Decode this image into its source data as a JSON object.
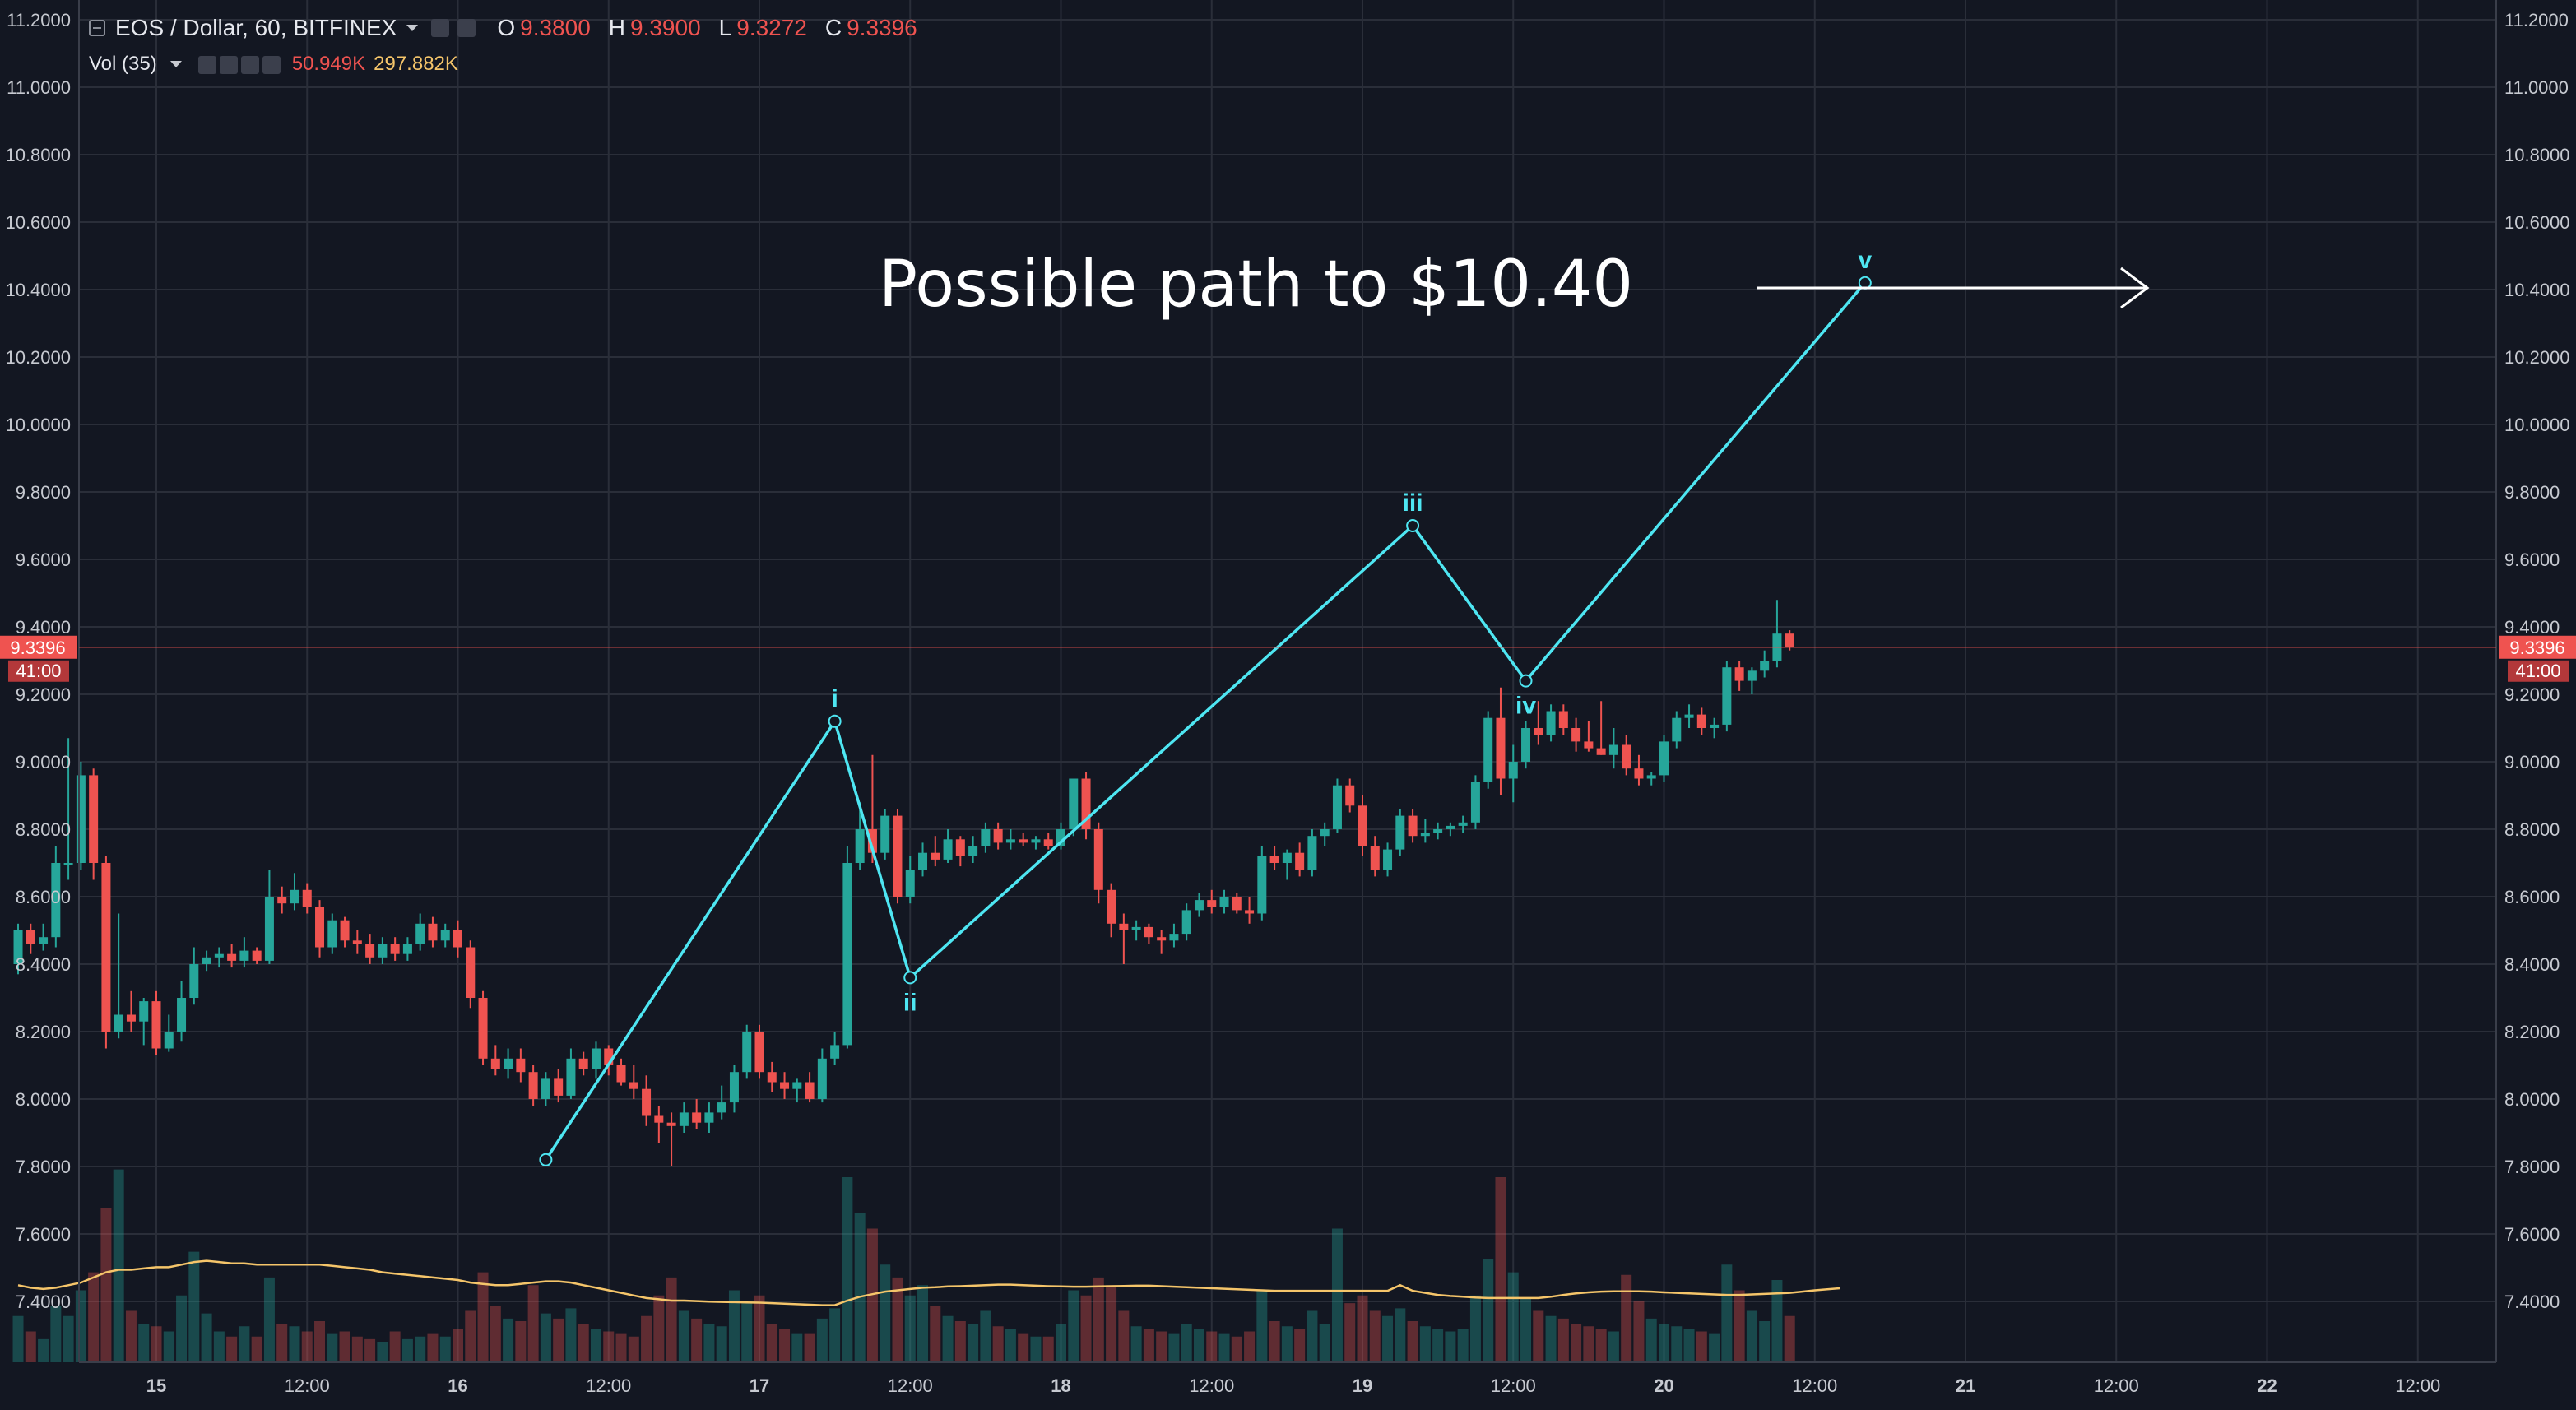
{
  "legend": {
    "symbol": "EOS / Dollar, 60, BITFINEX",
    "open_label": "O",
    "open": "9.3800",
    "high_label": "H",
    "high": "9.3900",
    "low_label": "L",
    "low": "9.3272",
    "close_label": "C",
    "close": "9.3396"
  },
  "volume_legend": {
    "label": "Vol (35)",
    "value": "50.949K",
    "ma": "297.882K"
  },
  "price_tag": {
    "price": "9.3396",
    "countdown": "41:00"
  },
  "annotation": {
    "text": "Possible path to $10.40"
  },
  "colors": {
    "background": "#131722",
    "grid": "#2a2e39",
    "up": "#26a69a",
    "down": "#ef5350",
    "wave": "#4ee6f2",
    "volume_ma": "#f5c56a",
    "price_line": "#ef5350"
  },
  "chart_data": {
    "type": "candlestick",
    "x_tick_labels": [
      "15",
      "12:00",
      "16",
      "12:00",
      "17",
      "12:00",
      "18",
      "12:00",
      "19",
      "12:00",
      "20",
      "12:00",
      "21",
      "12:00",
      "22",
      "12:00"
    ],
    "y_tick_labels": [
      "11.2000",
      "11.0000",
      "10.8000",
      "10.6000",
      "10.4000",
      "10.2000",
      "10.0000",
      "9.8000",
      "9.6000",
      "9.4000",
      "9.2000",
      "9.0000",
      "8.8000",
      "8.6000",
      "8.4000",
      "8.2000",
      "8.0000",
      "7.8000",
      "7.6000",
      "7.4000"
    ],
    "ylim": [
      7.2,
      11.25
    ],
    "bar_hours_per_day": 24,
    "x_range_hours": [
      -11,
      173
    ],
    "volume_max": 800,
    "candles": [
      {
        "o": 8.4,
        "h": 8.52,
        "l": 8.37,
        "c": 8.5,
        "v": 180
      },
      {
        "o": 8.5,
        "h": 8.52,
        "l": 8.43,
        "c": 8.46,
        "v": 120
      },
      {
        "o": 8.46,
        "h": 8.52,
        "l": 8.44,
        "c": 8.48,
        "v": 90
      },
      {
        "o": 8.48,
        "h": 8.75,
        "l": 8.45,
        "c": 8.7,
        "v": 220
      },
      {
        "o": 8.7,
        "h": 9.07,
        "l": 8.65,
        "c": 8.7,
        "v": 180
      },
      {
        "o": 8.7,
        "h": 9.0,
        "l": 8.68,
        "c": 8.96,
        "v": 280
      },
      {
        "o": 8.96,
        "h": 8.98,
        "l": 8.65,
        "c": 8.7,
        "v": 350
      },
      {
        "o": 8.7,
        "h": 8.72,
        "l": 8.15,
        "c": 8.2,
        "v": 600
      },
      {
        "o": 8.2,
        "h": 8.55,
        "l": 8.18,
        "c": 8.25,
        "v": 750
      },
      {
        "o": 8.25,
        "h": 8.32,
        "l": 8.2,
        "c": 8.23,
        "v": 200
      },
      {
        "o": 8.23,
        "h": 8.3,
        "l": 8.16,
        "c": 8.29,
        "v": 150
      },
      {
        "o": 8.29,
        "h": 8.32,
        "l": 8.13,
        "c": 8.15,
        "v": 140
      },
      {
        "o": 8.15,
        "h": 8.25,
        "l": 8.14,
        "c": 8.2,
        "v": 120
      },
      {
        "o": 8.2,
        "h": 8.35,
        "l": 8.17,
        "c": 8.3,
        "v": 260
      },
      {
        "o": 8.3,
        "h": 8.45,
        "l": 8.28,
        "c": 8.4,
        "v": 430
      },
      {
        "o": 8.4,
        "h": 8.44,
        "l": 8.38,
        "c": 8.42,
        "v": 190
      },
      {
        "o": 8.42,
        "h": 8.45,
        "l": 8.39,
        "c": 8.43,
        "v": 120
      },
      {
        "o": 8.43,
        "h": 8.46,
        "l": 8.39,
        "c": 8.41,
        "v": 100
      },
      {
        "o": 8.41,
        "h": 8.48,
        "l": 8.39,
        "c": 8.44,
        "v": 140
      },
      {
        "o": 8.44,
        "h": 8.45,
        "l": 8.4,
        "c": 8.41,
        "v": 100
      },
      {
        "o": 8.41,
        "h": 8.68,
        "l": 8.4,
        "c": 8.6,
        "v": 330
      },
      {
        "o": 8.6,
        "h": 8.63,
        "l": 8.55,
        "c": 8.58,
        "v": 150
      },
      {
        "o": 8.58,
        "h": 8.67,
        "l": 8.56,
        "c": 8.62,
        "v": 140
      },
      {
        "o": 8.62,
        "h": 8.64,
        "l": 8.55,
        "c": 8.57,
        "v": 120
      },
      {
        "o": 8.57,
        "h": 8.59,
        "l": 8.42,
        "c": 8.45,
        "v": 160
      },
      {
        "o": 8.45,
        "h": 8.55,
        "l": 8.43,
        "c": 8.53,
        "v": 110
      },
      {
        "o": 8.53,
        "h": 8.54,
        "l": 8.45,
        "c": 8.47,
        "v": 120
      },
      {
        "o": 8.47,
        "h": 8.5,
        "l": 8.43,
        "c": 8.46,
        "v": 100
      },
      {
        "o": 8.46,
        "h": 8.49,
        "l": 8.4,
        "c": 8.42,
        "v": 90
      },
      {
        "o": 8.42,
        "h": 8.48,
        "l": 8.4,
        "c": 8.46,
        "v": 80
      },
      {
        "o": 8.46,
        "h": 8.48,
        "l": 8.41,
        "c": 8.43,
        "v": 120
      },
      {
        "o": 8.43,
        "h": 8.48,
        "l": 8.41,
        "c": 8.46,
        "v": 90
      },
      {
        "o": 8.46,
        "h": 8.55,
        "l": 8.44,
        "c": 8.52,
        "v": 100
      },
      {
        "o": 8.52,
        "h": 8.54,
        "l": 8.45,
        "c": 8.47,
        "v": 110
      },
      {
        "o": 8.47,
        "h": 8.52,
        "l": 8.45,
        "c": 8.5,
        "v": 100
      },
      {
        "o": 8.5,
        "h": 8.53,
        "l": 8.42,
        "c": 8.45,
        "v": 130
      },
      {
        "o": 8.45,
        "h": 8.47,
        "l": 8.27,
        "c": 8.3,
        "v": 200
      },
      {
        "o": 8.3,
        "h": 8.32,
        "l": 8.1,
        "c": 8.12,
        "v": 350
      },
      {
        "o": 8.12,
        "h": 8.16,
        "l": 8.07,
        "c": 8.09,
        "v": 220
      },
      {
        "o": 8.09,
        "h": 8.15,
        "l": 8.06,
        "c": 8.12,
        "v": 170
      },
      {
        "o": 8.12,
        "h": 8.15,
        "l": 8.05,
        "c": 8.08,
        "v": 160
      },
      {
        "o": 8.08,
        "h": 8.1,
        "l": 7.98,
        "c": 8.0,
        "v": 300
      },
      {
        "o": 8.0,
        "h": 8.08,
        "l": 7.98,
        "c": 8.06,
        "v": 190
      },
      {
        "o": 8.06,
        "h": 8.09,
        "l": 7.99,
        "c": 8.01,
        "v": 170
      },
      {
        "o": 8.01,
        "h": 8.15,
        "l": 8.0,
        "c": 8.12,
        "v": 210
      },
      {
        "o": 8.12,
        "h": 8.14,
        "l": 8.07,
        "c": 8.09,
        "v": 150
      },
      {
        "o": 8.09,
        "h": 8.17,
        "l": 8.06,
        "c": 8.15,
        "v": 130
      },
      {
        "o": 8.15,
        "h": 8.16,
        "l": 8.07,
        "c": 8.1,
        "v": 120
      },
      {
        "o": 8.1,
        "h": 8.12,
        "l": 8.04,
        "c": 8.05,
        "v": 110
      },
      {
        "o": 8.05,
        "h": 8.1,
        "l": 8.0,
        "c": 8.03,
        "v": 100
      },
      {
        "o": 8.03,
        "h": 8.07,
        "l": 7.92,
        "c": 7.95,
        "v": 180
      },
      {
        "o": 7.95,
        "h": 7.98,
        "l": 7.87,
        "c": 7.93,
        "v": 260
      },
      {
        "o": 7.93,
        "h": 7.96,
        "l": 7.8,
        "c": 7.92,
        "v": 330
      },
      {
        "o": 7.92,
        "h": 7.99,
        "l": 7.9,
        "c": 7.96,
        "v": 200
      },
      {
        "o": 7.96,
        "h": 8.0,
        "l": 7.91,
        "c": 7.93,
        "v": 170
      },
      {
        "o": 7.93,
        "h": 7.99,
        "l": 7.9,
        "c": 7.96,
        "v": 150
      },
      {
        "o": 7.96,
        "h": 8.04,
        "l": 7.94,
        "c": 7.99,
        "v": 140
      },
      {
        "o": 7.99,
        "h": 8.1,
        "l": 7.96,
        "c": 8.08,
        "v": 280
      },
      {
        "o": 8.08,
        "h": 8.22,
        "l": 8.06,
        "c": 8.2,
        "v": 230
      },
      {
        "o": 8.2,
        "h": 8.22,
        "l": 8.06,
        "c": 8.08,
        "v": 260
      },
      {
        "o": 8.08,
        "h": 8.11,
        "l": 8.02,
        "c": 8.05,
        "v": 150
      },
      {
        "o": 8.05,
        "h": 8.08,
        "l": 8.0,
        "c": 8.03,
        "v": 130
      },
      {
        "o": 8.03,
        "h": 8.06,
        "l": 7.99,
        "c": 8.05,
        "v": 110
      },
      {
        "o": 8.05,
        "h": 8.08,
        "l": 7.99,
        "c": 8.0,
        "v": 110
      },
      {
        "o": 8.0,
        "h": 8.15,
        "l": 7.99,
        "c": 8.12,
        "v": 170
      },
      {
        "o": 8.12,
        "h": 8.2,
        "l": 8.1,
        "c": 8.16,
        "v": 210
      },
      {
        "o": 8.16,
        "h": 8.75,
        "l": 8.15,
        "c": 8.7,
        "v": 720
      },
      {
        "o": 8.7,
        "h": 8.88,
        "l": 8.68,
        "c": 8.8,
        "v": 580
      },
      {
        "o": 8.8,
        "h": 9.02,
        "l": 8.7,
        "c": 8.73,
        "v": 520
      },
      {
        "o": 8.73,
        "h": 8.86,
        "l": 8.71,
        "c": 8.84,
        "v": 380
      },
      {
        "o": 8.84,
        "h": 8.86,
        "l": 8.58,
        "c": 8.6,
        "v": 330
      },
      {
        "o": 8.6,
        "h": 8.72,
        "l": 8.58,
        "c": 8.68,
        "v": 260
      },
      {
        "o": 8.68,
        "h": 8.76,
        "l": 8.66,
        "c": 8.73,
        "v": 300
      },
      {
        "o": 8.73,
        "h": 8.78,
        "l": 8.69,
        "c": 8.71,
        "v": 220
      },
      {
        "o": 8.71,
        "h": 8.8,
        "l": 8.7,
        "c": 8.77,
        "v": 180
      },
      {
        "o": 8.77,
        "h": 8.78,
        "l": 8.69,
        "c": 8.72,
        "v": 160
      },
      {
        "o": 8.72,
        "h": 8.78,
        "l": 8.7,
        "c": 8.75,
        "v": 150
      },
      {
        "o": 8.75,
        "h": 8.82,
        "l": 8.73,
        "c": 8.8,
        "v": 200
      },
      {
        "o": 8.8,
        "h": 8.82,
        "l": 8.74,
        "c": 8.76,
        "v": 140
      },
      {
        "o": 8.76,
        "h": 8.8,
        "l": 8.74,
        "c": 8.77,
        "v": 130
      },
      {
        "o": 8.77,
        "h": 8.79,
        "l": 8.75,
        "c": 8.76,
        "v": 110
      },
      {
        "o": 8.76,
        "h": 8.78,
        "l": 8.74,
        "c": 8.77,
        "v": 100
      },
      {
        "o": 8.77,
        "h": 8.79,
        "l": 8.74,
        "c": 8.75,
        "v": 100
      },
      {
        "o": 8.75,
        "h": 8.82,
        "l": 8.74,
        "c": 8.8,
        "v": 150
      },
      {
        "o": 8.8,
        "h": 8.95,
        "l": 8.78,
        "c": 8.95,
        "v": 280
      },
      {
        "o": 8.95,
        "h": 8.97,
        "l": 8.77,
        "c": 8.8,
        "v": 260
      },
      {
        "o": 8.8,
        "h": 8.82,
        "l": 8.58,
        "c": 8.62,
        "v": 330
      },
      {
        "o": 8.62,
        "h": 8.64,
        "l": 8.48,
        "c": 8.52,
        "v": 300
      },
      {
        "o": 8.52,
        "h": 8.55,
        "l": 8.4,
        "c": 8.5,
        "v": 200
      },
      {
        "o": 8.5,
        "h": 8.53,
        "l": 8.47,
        "c": 8.51,
        "v": 140
      },
      {
        "o": 8.51,
        "h": 8.52,
        "l": 8.46,
        "c": 8.48,
        "v": 130
      },
      {
        "o": 8.48,
        "h": 8.5,
        "l": 8.43,
        "c": 8.47,
        "v": 120
      },
      {
        "o": 8.47,
        "h": 8.52,
        "l": 8.45,
        "c": 8.49,
        "v": 110
      },
      {
        "o": 8.49,
        "h": 8.58,
        "l": 8.47,
        "c": 8.56,
        "v": 150
      },
      {
        "o": 8.56,
        "h": 8.61,
        "l": 8.54,
        "c": 8.59,
        "v": 130
      },
      {
        "o": 8.59,
        "h": 8.62,
        "l": 8.55,
        "c": 8.57,
        "v": 120
      },
      {
        "o": 8.57,
        "h": 8.62,
        "l": 8.55,
        "c": 8.6,
        "v": 110
      },
      {
        "o": 8.6,
        "h": 8.61,
        "l": 8.55,
        "c": 8.56,
        "v": 100
      },
      {
        "o": 8.56,
        "h": 8.6,
        "l": 8.52,
        "c": 8.55,
        "v": 120
      },
      {
        "o": 8.55,
        "h": 8.75,
        "l": 8.53,
        "c": 8.72,
        "v": 280
      },
      {
        "o": 8.72,
        "h": 8.75,
        "l": 8.68,
        "c": 8.7,
        "v": 160
      },
      {
        "o": 8.7,
        "h": 8.74,
        "l": 8.65,
        "c": 8.73,
        "v": 140
      },
      {
        "o": 8.73,
        "h": 8.76,
        "l": 8.66,
        "c": 8.68,
        "v": 130
      },
      {
        "o": 8.68,
        "h": 8.8,
        "l": 8.66,
        "c": 8.78,
        "v": 200
      },
      {
        "o": 8.78,
        "h": 8.82,
        "l": 8.75,
        "c": 8.8,
        "v": 150
      },
      {
        "o": 8.8,
        "h": 8.95,
        "l": 8.79,
        "c": 8.93,
        "v": 520
      },
      {
        "o": 8.93,
        "h": 8.95,
        "l": 8.85,
        "c": 8.87,
        "v": 230
      },
      {
        "o": 8.87,
        "h": 8.9,
        "l": 8.72,
        "c": 8.75,
        "v": 260
      },
      {
        "o": 8.75,
        "h": 8.78,
        "l": 8.66,
        "c": 8.68,
        "v": 200
      },
      {
        "o": 8.68,
        "h": 8.76,
        "l": 8.66,
        "c": 8.74,
        "v": 180
      },
      {
        "o": 8.74,
        "h": 8.86,
        "l": 8.72,
        "c": 8.84,
        "v": 210
      },
      {
        "o": 8.84,
        "h": 8.86,
        "l": 8.76,
        "c": 8.78,
        "v": 160
      },
      {
        "o": 8.78,
        "h": 8.83,
        "l": 8.76,
        "c": 8.79,
        "v": 140
      },
      {
        "o": 8.79,
        "h": 8.82,
        "l": 8.77,
        "c": 8.8,
        "v": 130
      },
      {
        "o": 8.8,
        "h": 8.82,
        "l": 8.78,
        "c": 8.81,
        "v": 120
      },
      {
        "o": 8.81,
        "h": 8.84,
        "l": 8.79,
        "c": 8.82,
        "v": 130
      },
      {
        "o": 8.82,
        "h": 8.96,
        "l": 8.8,
        "c": 8.94,
        "v": 260
      },
      {
        "o": 8.94,
        "h": 9.15,
        "l": 8.92,
        "c": 9.13,
        "v": 400
      },
      {
        "o": 9.13,
        "h": 9.22,
        "l": 8.9,
        "c": 8.95,
        "v": 720
      },
      {
        "o": 8.95,
        "h": 9.05,
        "l": 8.88,
        "c": 9.0,
        "v": 350
      },
      {
        "o": 9.0,
        "h": 9.12,
        "l": 8.98,
        "c": 9.1,
        "v": 250
      },
      {
        "o": 9.1,
        "h": 9.18,
        "l": 9.05,
        "c": 9.08,
        "v": 200
      },
      {
        "o": 9.08,
        "h": 9.17,
        "l": 9.06,
        "c": 9.15,
        "v": 180
      },
      {
        "o": 9.15,
        "h": 9.17,
        "l": 9.08,
        "c": 9.1,
        "v": 170
      },
      {
        "o": 9.1,
        "h": 9.13,
        "l": 9.03,
        "c": 9.06,
        "v": 150
      },
      {
        "o": 9.06,
        "h": 9.12,
        "l": 9.03,
        "c": 9.04,
        "v": 140
      },
      {
        "o": 9.04,
        "h": 9.18,
        "l": 9.02,
        "c": 9.02,
        "v": 130
      },
      {
        "o": 9.02,
        "h": 9.1,
        "l": 8.98,
        "c": 9.05,
        "v": 120
      },
      {
        "o": 9.05,
        "h": 9.08,
        "l": 8.96,
        "c": 8.98,
        "v": 340
      },
      {
        "o": 8.98,
        "h": 9.02,
        "l": 8.93,
        "c": 8.95,
        "v": 240
      },
      {
        "o": 8.95,
        "h": 8.97,
        "l": 8.93,
        "c": 8.96,
        "v": 170
      },
      {
        "o": 8.96,
        "h": 9.08,
        "l": 8.94,
        "c": 9.06,
        "v": 150
      },
      {
        "o": 9.06,
        "h": 9.15,
        "l": 9.04,
        "c": 9.13,
        "v": 140
      },
      {
        "o": 9.13,
        "h": 9.17,
        "l": 9.1,
        "c": 9.14,
        "v": 130
      },
      {
        "o": 9.14,
        "h": 9.16,
        "l": 9.08,
        "c": 9.1,
        "v": 120
      },
      {
        "o": 9.1,
        "h": 9.13,
        "l": 9.07,
        "c": 9.11,
        "v": 110
      },
      {
        "o": 9.11,
        "h": 9.3,
        "l": 9.09,
        "c": 9.28,
        "v": 380
      },
      {
        "o": 9.28,
        "h": 9.3,
        "l": 9.21,
        "c": 9.24,
        "v": 280
      },
      {
        "o": 9.24,
        "h": 9.28,
        "l": 9.2,
        "c": 9.27,
        "v": 200
      },
      {
        "o": 9.27,
        "h": 9.33,
        "l": 9.25,
        "c": 9.3,
        "v": 160
      },
      {
        "o": 9.3,
        "h": 9.48,
        "l": 9.28,
        "c": 9.38,
        "v": 320
      },
      {
        "o": 9.38,
        "h": 9.39,
        "l": 9.33,
        "c": 9.34,
        "v": 180
      }
    ],
    "volume_ma": [
      300,
      290,
      285,
      290,
      300,
      310,
      330,
      350,
      360,
      360,
      365,
      370,
      370,
      380,
      390,
      395,
      390,
      385,
      385,
      380,
      380,
      380,
      380,
      380,
      380,
      375,
      370,
      365,
      360,
      350,
      345,
      340,
      335,
      330,
      325,
      320,
      310,
      305,
      300,
      300,
      305,
      310,
      315,
      315,
      310,
      300,
      290,
      280,
      270,
      260,
      250,
      245,
      240,
      240,
      238,
      236,
      235,
      234,
      233,
      232,
      230,
      228,
      226,
      224,
      222,
      222,
      240,
      255,
      265,
      275,
      280,
      285,
      290,
      292,
      295,
      296,
      298,
      300,
      302,
      302,
      300,
      298,
      296,
      295,
      294,
      294,
      295,
      296,
      297,
      298,
      298,
      296,
      294,
      292,
      290,
      288,
      286,
      284,
      282,
      280,
      278,
      278,
      278,
      278,
      278,
      278,
      278,
      278,
      278,
      278,
      300,
      278,
      270,
      262,
      258,
      255,
      252,
      250,
      250,
      250,
      250,
      250,
      255,
      262,
      268,
      272,
      275,
      276,
      276,
      276,
      275,
      272,
      270,
      268,
      266,
      264,
      262,
      262,
      264,
      266,
      268,
      270,
      275,
      280,
      284,
      288
    ],
    "wave_points": [
      {
        "label": "",
        "hour": 31,
        "price": 7.82
      },
      {
        "label": "i",
        "hour": 54,
        "price": 9.12
      },
      {
        "label": "ii",
        "hour": 60,
        "price": 8.36
      },
      {
        "label": "iii",
        "hour": 100,
        "price": 9.7
      },
      {
        "label": "iv",
        "hour": 109,
        "price": 9.24
      },
      {
        "label": "v",
        "hour": 136,
        "price": 10.42
      }
    ]
  }
}
